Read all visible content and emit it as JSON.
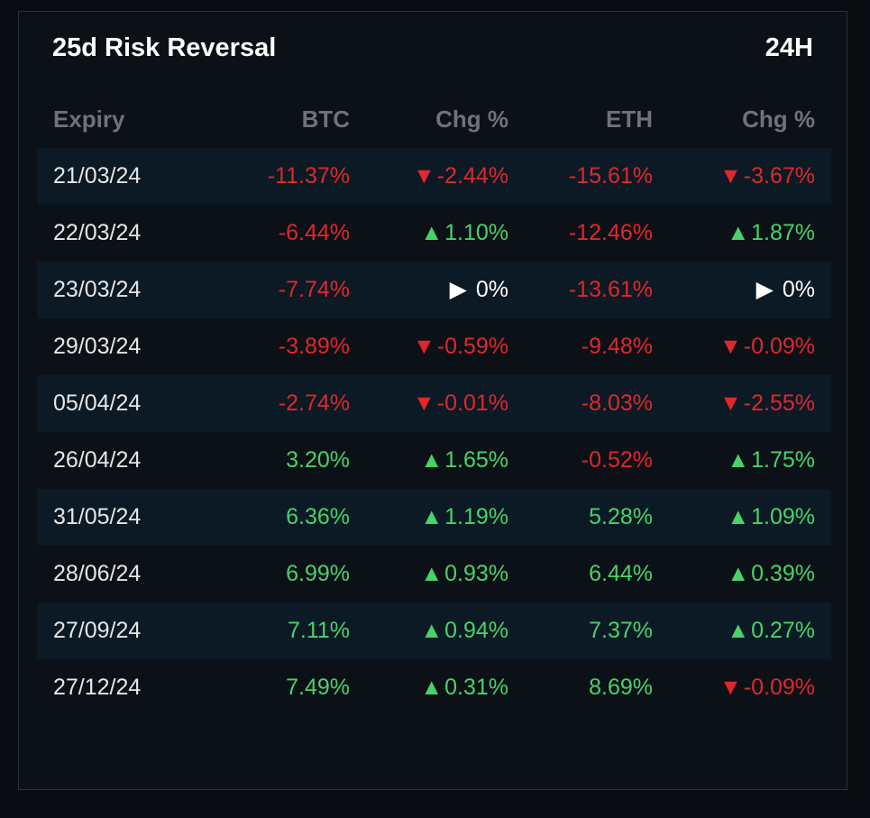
{
  "panel": {
    "title": "25d Risk Reversal",
    "timeframe": "24H"
  },
  "table": {
    "headers": {
      "expiry": "Expiry",
      "btc": "BTC",
      "btc_chg": "Chg %",
      "eth": "ETH",
      "eth_chg": "Chg %"
    },
    "rows": [
      {
        "expiry": "21/03/24",
        "btc": "-11.37%",
        "btc_chg": "-2.44%",
        "eth": "-15.61%",
        "eth_chg": "-3.67%"
      },
      {
        "expiry": "22/03/24",
        "btc": "-6.44%",
        "btc_chg": "1.10%",
        "eth": "-12.46%",
        "eth_chg": "1.87%"
      },
      {
        "expiry": "23/03/24",
        "btc": "-7.74%",
        "btc_chg": "0%",
        "eth": "-13.61%",
        "eth_chg": "0%"
      },
      {
        "expiry": "29/03/24",
        "btc": "-3.89%",
        "btc_chg": "-0.59%",
        "eth": "-9.48%",
        "eth_chg": "-0.09%"
      },
      {
        "expiry": "05/04/24",
        "btc": "-2.74%",
        "btc_chg": "-0.01%",
        "eth": "-8.03%",
        "eth_chg": "-2.55%"
      },
      {
        "expiry": "26/04/24",
        "btc": "3.20%",
        "btc_chg": "1.65%",
        "eth": "-0.52%",
        "eth_chg": "1.75%"
      },
      {
        "expiry": "31/05/24",
        "btc": "6.36%",
        "btc_chg": "1.19%",
        "eth": "5.28%",
        "eth_chg": "1.09%"
      },
      {
        "expiry": "28/06/24",
        "btc": "6.99%",
        "btc_chg": "0.93%",
        "eth": "6.44%",
        "eth_chg": "0.39%"
      },
      {
        "expiry": "27/09/24",
        "btc": "7.11%",
        "btc_chg": "0.94%",
        "eth": "7.37%",
        "eth_chg": "0.27%"
      },
      {
        "expiry": "27/12/24",
        "btc": "7.49%",
        "btc_chg": "0.31%",
        "eth": "8.69%",
        "eth_chg": "-0.09%"
      }
    ]
  },
  "colors": {
    "negative": "#e0272c",
    "positive": "#48d26a",
    "neutral": "#ffffff"
  },
  "icons": {
    "down": "triangle-down-icon",
    "up": "triangle-up-icon",
    "flat": "triangle-right-icon"
  }
}
